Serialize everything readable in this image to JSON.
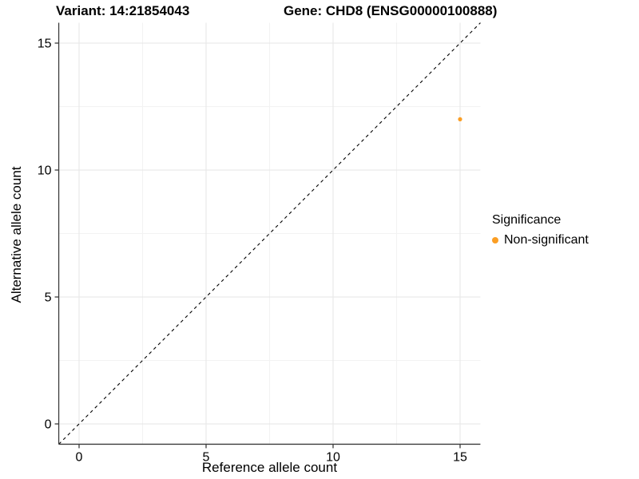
{
  "chart_data": {
    "type": "scatter",
    "title_variant": "Variant: 14:21854043",
    "title_gene": "Gene: CHD8 (ENSG00000100888)",
    "xlabel": "Reference allele count",
    "ylabel": "Alternative allele count",
    "xlim": [
      -0.8,
      15.8
    ],
    "ylim": [
      -0.8,
      15.8
    ],
    "xticks": [
      0,
      5,
      10,
      15
    ],
    "yticks": [
      0,
      5,
      10,
      15
    ],
    "minor_xticks": [
      2.5,
      7.5,
      12.5
    ],
    "minor_yticks": [
      2.5,
      7.5,
      12.5
    ],
    "grid": "major+minor",
    "identity_line": {
      "slope": 1,
      "intercept": 0,
      "style": "dashed",
      "color": "#000000"
    },
    "series": [
      {
        "name": "Non-significant",
        "color": "#FB9E24",
        "points": [
          {
            "x": 15,
            "y": 12
          }
        ]
      }
    ],
    "legend": {
      "title": "Significance",
      "position": "right",
      "items": [
        {
          "label": "Non-significant",
          "color": "#FB9E24"
        }
      ]
    },
    "colors": {
      "grid_major": "#e6e6e6",
      "grid_minor": "#f2f2f2",
      "axis": "#3c3c3c",
      "text": "#000000"
    }
  }
}
